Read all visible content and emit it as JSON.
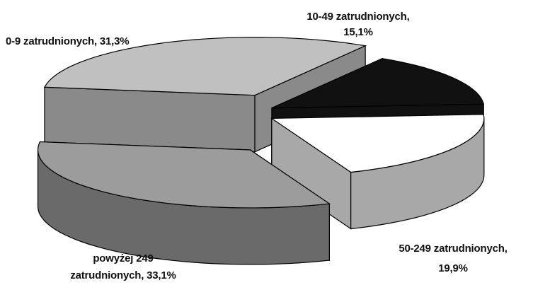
{
  "chart_data": {
    "type": "pie",
    "title": "",
    "subtitle": "",
    "three_d": true,
    "exploded": true,
    "legend": "none",
    "data_labels": "outside",
    "slices": [
      {
        "category": "0-9 zatrudnionych",
        "value": 31.3,
        "label_line1": "0-9 zatrudnionych, 31,3%",
        "label_line2": "",
        "color": "#c0c0c0"
      },
      {
        "category": "10-49 zatrudnionych",
        "value": 15.1,
        "label_line1": "10-49 zatrudnionych,",
        "label_line2": "15,1%",
        "color": "#111111"
      },
      {
        "category": "50-249 zatrudnionych",
        "value": 19.9,
        "label_line1": "50-249 zatrudnionych,",
        "label_line2": "19,9%",
        "color": "#ffffff"
      },
      {
        "category": "powyżej 249 zatrudnionych",
        "value": 33.1,
        "label_line1": "powyżej 249",
        "label_line2": "zatrudnionych, 33,1%",
        "color": "#9c9c9c"
      }
    ]
  }
}
